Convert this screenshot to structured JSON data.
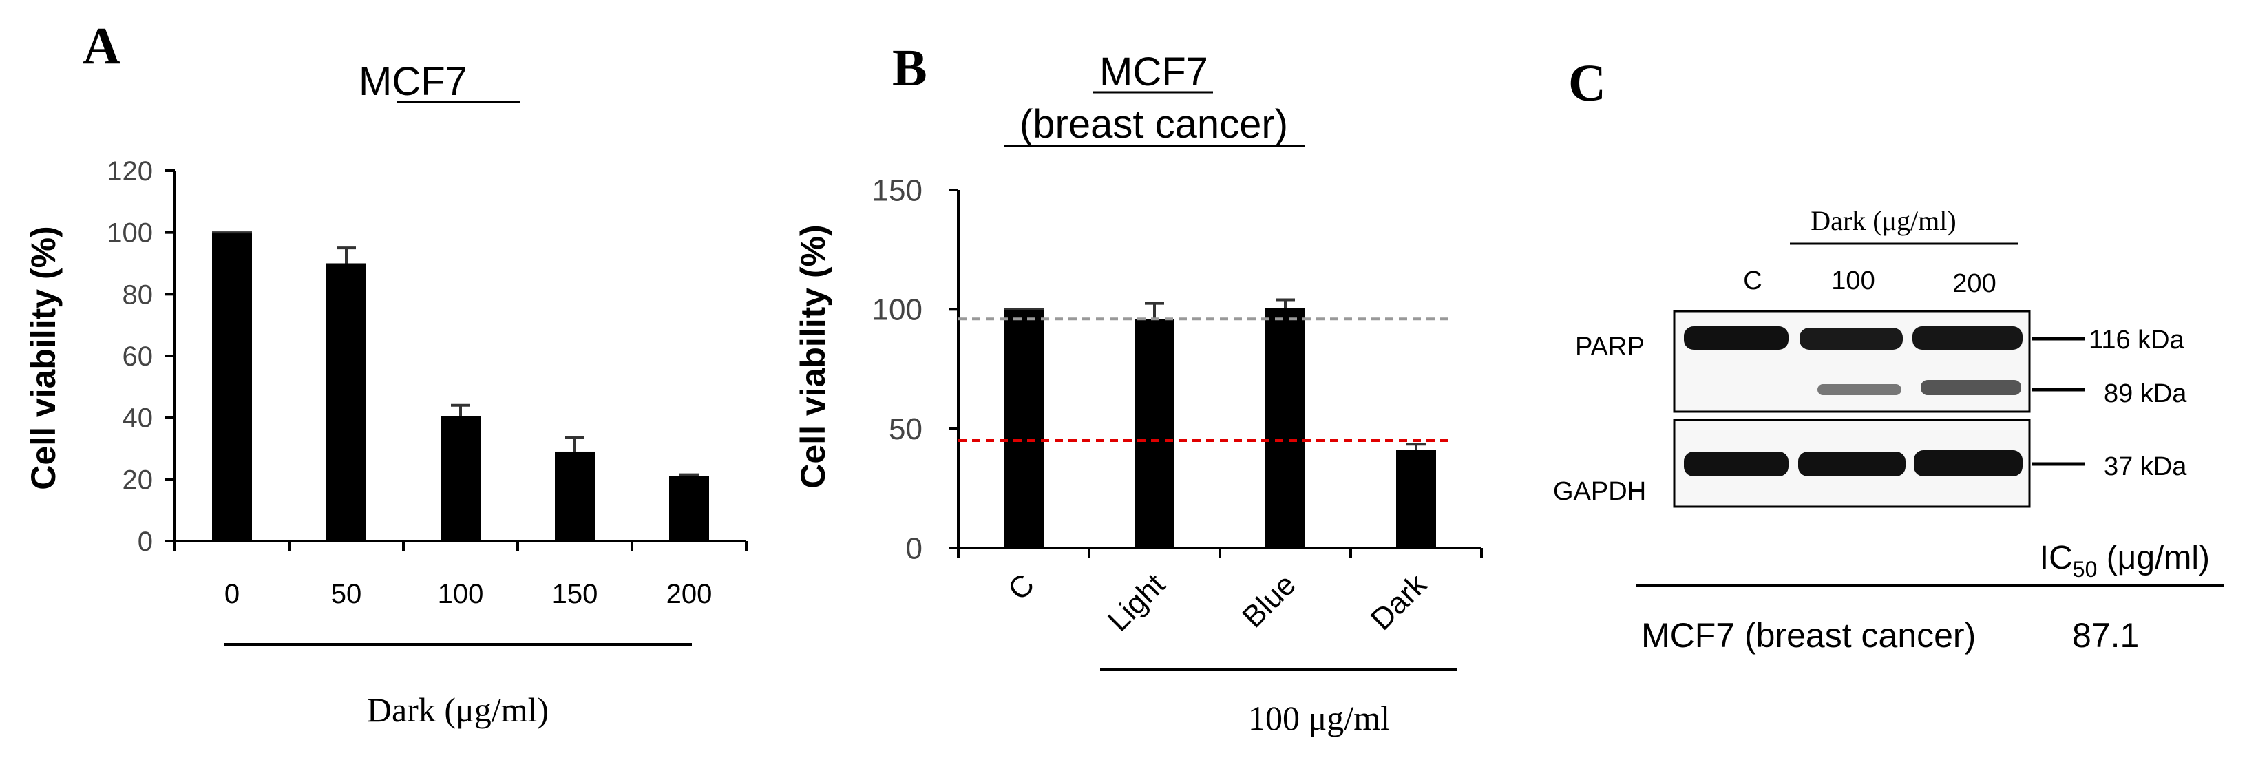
{
  "panels": {
    "A": {
      "letter": "A",
      "title": "MCF7",
      "ylabel": "Cell viability (%)",
      "group_label": "Dark (μg/ml)"
    },
    "B": {
      "letter": "B",
      "title_line1": "MCF7",
      "title_line2": "(breast cancer)",
      "ylabel": "Cell viability (%)",
      "group_label": "100 μg/ml"
    },
    "C": {
      "letter": "C",
      "header": "Dark (μg/ml)",
      "lanes": [
        "C",
        "100",
        "200"
      ],
      "row1": "PARP",
      "row2": "GAPDH",
      "markers": [
        "116 kDa",
        "89 kDa",
        "37 kDa"
      ],
      "table": {
        "col_header_main": "IC",
        "col_header_sub": "50",
        "col_header_unit": " (μg/ml)",
        "row_label": "MCF7 (breast cancer)",
        "row_value": "87.1"
      }
    }
  },
  "chart_data": [
    {
      "type": "bar",
      "title": "MCF7",
      "xlabel": "Dark (μg/ml)",
      "ylabel": "Cell viability (%)",
      "categories": [
        "0",
        "50",
        "100",
        "150",
        "200"
      ],
      "values": [
        100,
        90,
        40.5,
        29,
        21
      ],
      "errors": [
        0,
        5,
        3.5,
        4.5,
        0.5
      ],
      "ylim": [
        0,
        120
      ],
      "yticks": [
        "0",
        "20",
        "40",
        "60",
        "80",
        "100",
        "120"
      ],
      "bar_color": "#000000"
    },
    {
      "type": "bar",
      "title": "MCF7 (breast cancer)",
      "xlabel": "100 μg/ml",
      "ylabel": "Cell viability (%)",
      "categories": [
        "C",
        "Light",
        "Blue",
        "Dark"
      ],
      "values": [
        100,
        96,
        100.5,
        41
      ],
      "errors": [
        0,
        6.5,
        3.5,
        2.5
      ],
      "ylim": [
        0,
        150
      ],
      "yticks": [
        "0",
        "50",
        "100",
        "150"
      ],
      "reference_lines": [
        {
          "y": 96,
          "color": "#999999"
        },
        {
          "y": 45,
          "color": "#e00000"
        }
      ],
      "bar_color": "#000000"
    }
  ]
}
